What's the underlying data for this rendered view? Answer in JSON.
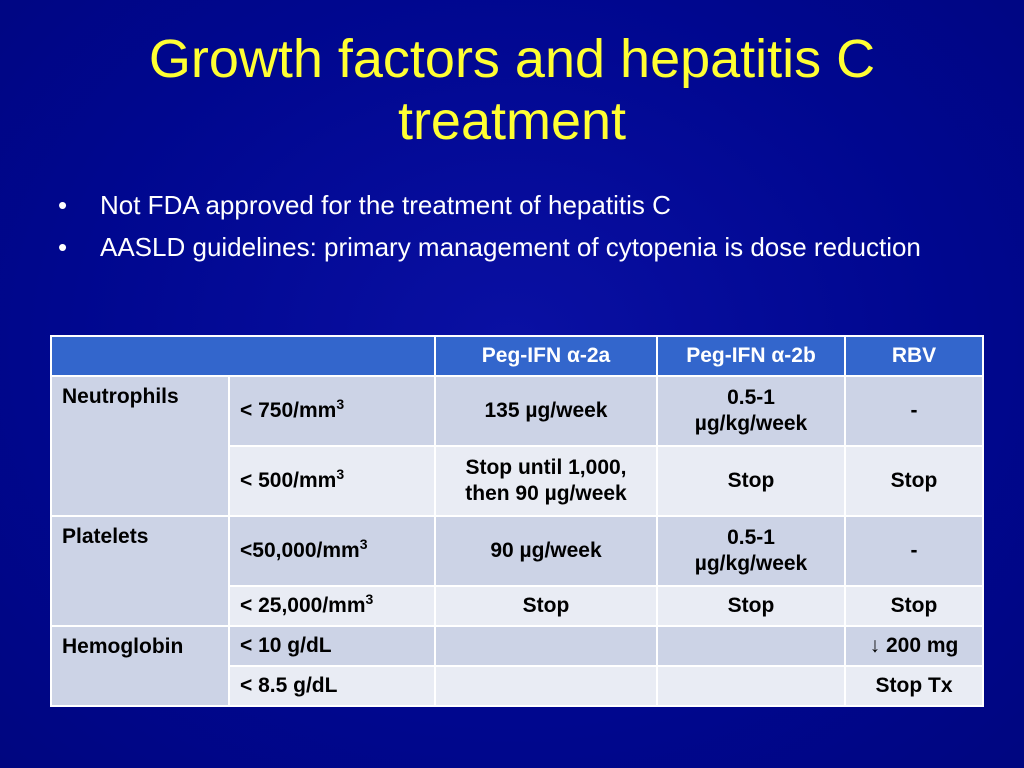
{
  "slide": {
    "title": "Growth factors and hepatitis C treatment",
    "bullet_marker": "•",
    "bullets": [
      "Not FDA approved for the treatment of hepatitis C",
      "AASLD guidelines: primary management of cytopenia is dose reduction"
    ]
  },
  "table": {
    "headers": [
      "",
      "Peg-IFN α-2a",
      "Peg-IFN α-2b",
      "RBV"
    ],
    "groups": [
      {
        "category": "Neutrophils",
        "rows": [
          {
            "threshold": "< 750/mm",
            "sup": "3",
            "peg2a": "135 µg/week",
            "peg2b_line1": "0.5-1",
            "peg2b_line2": "µg/kg/week",
            "rbv": "-"
          },
          {
            "threshold": "< 500/mm",
            "sup": "3",
            "peg2a_line1": "Stop until 1,000,",
            "peg2a_line2": "then 90 µg/week",
            "peg2b": "Stop",
            "rbv": "Stop"
          }
        ]
      },
      {
        "category": "Platelets",
        "rows": [
          {
            "threshold": "<50,000/mm",
            "sup": "3",
            "peg2a": "90 µg/week",
            "peg2b_line1": "0.5-1",
            "peg2b_line2": "µg/kg/week",
            "rbv": "-"
          },
          {
            "threshold": "< 25,000/mm",
            "sup": "3",
            "peg2a": "Stop",
            "peg2b": "Stop",
            "rbv": "Stop"
          }
        ]
      },
      {
        "category": "Hemoglobin",
        "rows": [
          {
            "threshold": "< 10 g/dL",
            "peg2a": "",
            "peg2b": "",
            "rbv": "↓ 200 mg"
          },
          {
            "threshold": "< 8.5 g/dL",
            "peg2a": "",
            "peg2b": "",
            "rbv": "Stop Tx"
          }
        ]
      }
    ]
  },
  "colors": {
    "background": "#00078f",
    "title": "#ffff33",
    "header_fill": "#3366cc",
    "row_dark": "#ccd3e6",
    "row_light": "#e9ecf4"
  }
}
